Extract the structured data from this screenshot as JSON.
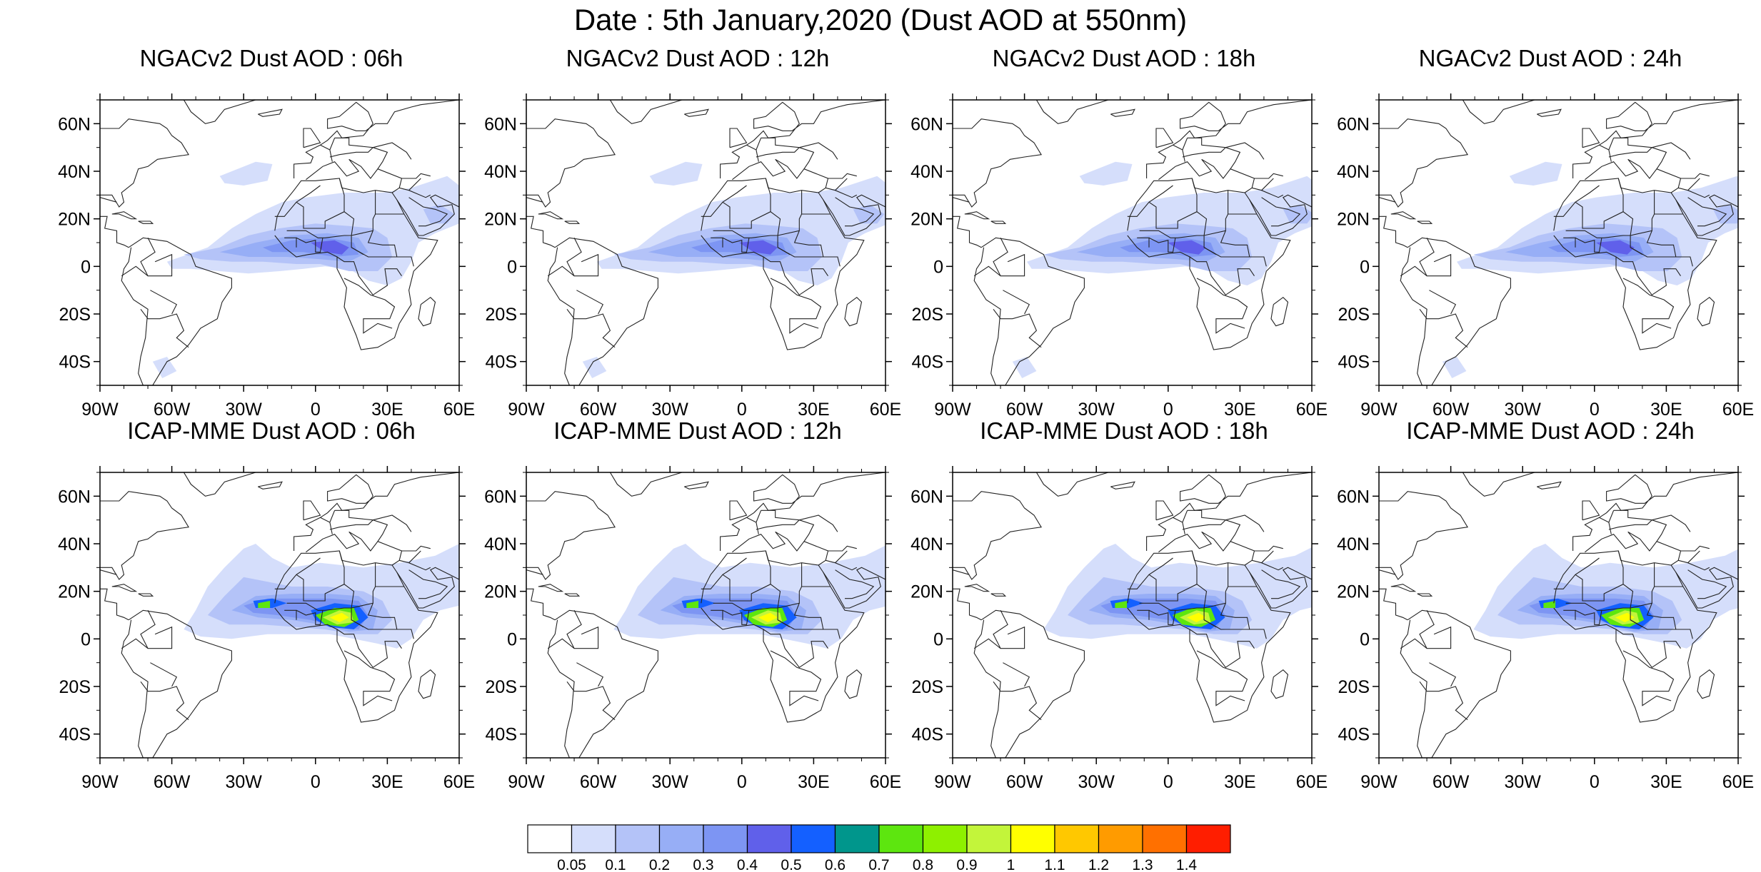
{
  "title": "Date : 5th January,2020 (Dust AOD at 550nm)",
  "map_extent": {
    "lon": [
      -90,
      60
    ],
    "lat": [
      -50,
      70
    ]
  },
  "lat_ticks": [
    {
      "value": 60,
      "label": "60N"
    },
    {
      "value": 40,
      "label": "40N"
    },
    {
      "value": 20,
      "label": "20N"
    },
    {
      "value": 0,
      "label": "0"
    },
    {
      "value": -20,
      "label": "20S"
    },
    {
      "value": -40,
      "label": "40S"
    }
  ],
  "lon_ticks": [
    {
      "value": -90,
      "label": "90W"
    },
    {
      "value": -60,
      "label": "60W"
    },
    {
      "value": -30,
      "label": "30W"
    },
    {
      "value": 0,
      "label": "0"
    },
    {
      "value": 30,
      "label": "30E"
    },
    {
      "value": 60,
      "label": "60E"
    }
  ],
  "panels": [
    {
      "title": "NGACv2 Dust AOD : 06h",
      "model": "NGACv2",
      "hour": 6,
      "max_aod": 0.6
    },
    {
      "title": "NGACv2 Dust AOD : 12h",
      "model": "NGACv2",
      "hour": 12,
      "max_aod": 0.5
    },
    {
      "title": "NGACv2 Dust AOD : 18h",
      "model": "NGACv2",
      "hour": 18,
      "max_aod": 0.5
    },
    {
      "title": "NGACv2 Dust AOD : 24h",
      "model": "NGACv2",
      "hour": 24,
      "max_aod": 0.5
    },
    {
      "title": "ICAP-MME Dust AOD : 06h",
      "model": "ICAP-MME",
      "hour": 6,
      "max_aod": 1.1
    },
    {
      "title": "ICAP-MME Dust AOD : 12h",
      "model": "ICAP-MME",
      "hour": 12,
      "max_aod": 1.1
    },
    {
      "title": "ICAP-MME Dust AOD : 18h",
      "model": "ICAP-MME",
      "hour": 18,
      "max_aod": 1.1
    },
    {
      "title": "ICAP-MME Dust AOD : 24h",
      "model": "ICAP-MME",
      "hour": 24,
      "max_aod": 1.1
    }
  ],
  "colorbar": {
    "labels": [
      "0.05",
      "0.1",
      "0.2",
      "0.3",
      "0.4",
      "0.5",
      "0.6",
      "0.7",
      "0.8",
      "0.9",
      "1",
      "1.1",
      "1.2",
      "1.3",
      "1.4"
    ],
    "colors": [
      "#ffffff",
      "#d5defb",
      "#b4c3f8",
      "#97aef6",
      "#7d95f3",
      "#6060ea",
      "#1460ff",
      "#00968c",
      "#5de60f",
      "#8ef000",
      "#c3f53a",
      "#ffff00",
      "#ffc800",
      "#ff9b00",
      "#ff7000",
      "#ff1e00"
    ]
  }
}
